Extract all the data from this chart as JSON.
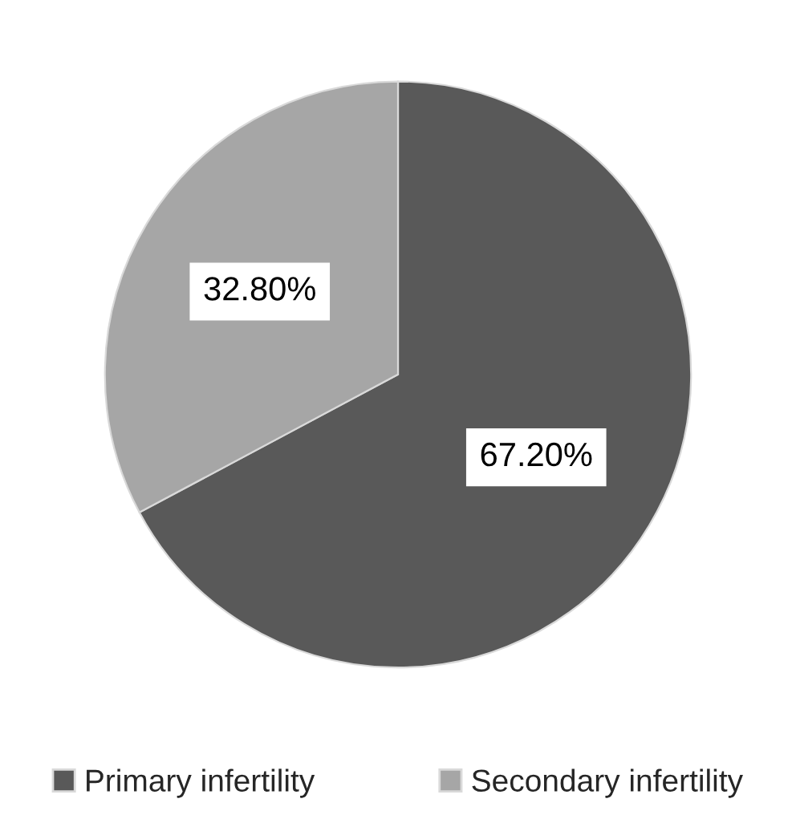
{
  "chart_data": {
    "type": "pie",
    "categories": [
      "Primary infertility",
      "Secondary infertility"
    ],
    "values": [
      67.2,
      32.8
    ],
    "value_labels": [
      "67.20%",
      "32.80%"
    ],
    "colors": [
      "#595959",
      "#a6a6a6"
    ],
    "legend": "bottom"
  }
}
